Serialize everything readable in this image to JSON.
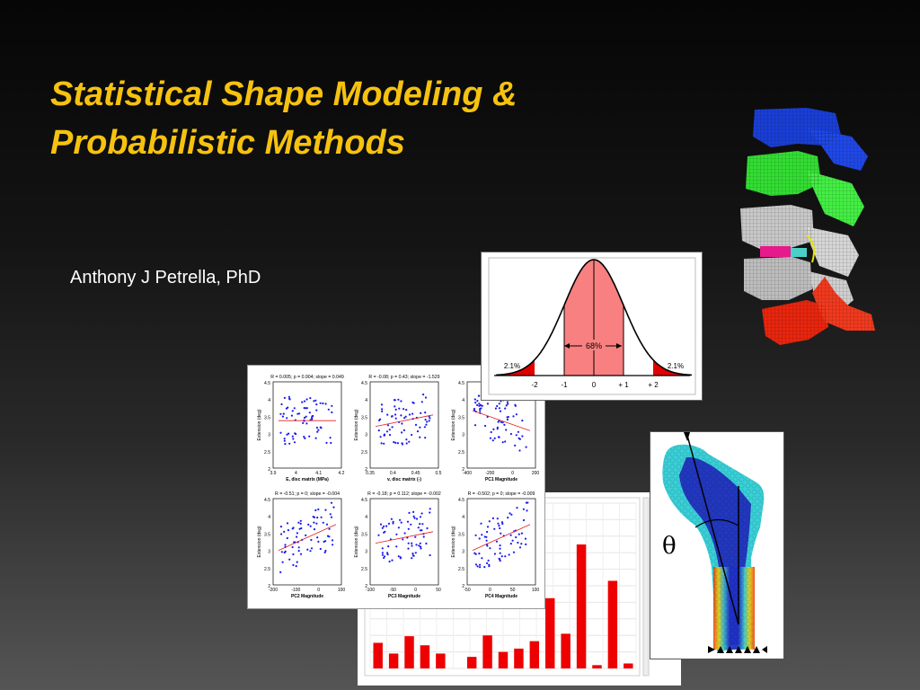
{
  "slide": {
    "title_line1": "Statistical Shape Modeling &",
    "title_line2": "Probabilistic Methods",
    "author": "Anthony J Petrella, PhD",
    "title_color": "#f6c20f"
  },
  "bell": {
    "center_label": "68%",
    "left_tail_label": "2.1%",
    "right_tail_label": "2.1%",
    "ticks": [
      "-2",
      "-1",
      "0",
      "+ 1",
      "+ 2"
    ]
  },
  "scatter_panels": [
    {
      "stats": "R = 0.005; p = 0.904; slope = 0.049",
      "xlabel": "E, disc matrix (MPa)",
      "xticks": [
        "3.9",
        "4",
        "4.1",
        "4.2"
      ]
    },
    {
      "stats": "R = -0.08; p = 0.43; slope = -1.529",
      "xlabel": "v, disc matrix (-)",
      "xticks": [
        "0.35",
        "0.4",
        "0.45",
        "0.5"
      ]
    },
    {
      "stats": "R = 0.4",
      "xlabel": "PC1 Magnitude",
      "xticks": [
        "-400",
        "-200",
        "0",
        "200"
      ]
    },
    {
      "stats": "R = -0.51; p = 0; slope = -0.004",
      "xlabel": "PC2 Magnitude",
      "xticks": [
        "-200",
        "-100",
        "0",
        "100"
      ]
    },
    {
      "stats": "R = -0.18; p = 0.112; slope = -0.002",
      "xlabel": "PC3 Magnitude",
      "xticks": [
        "-100",
        "-50",
        "0",
        "50"
      ]
    },
    {
      "stats": "R = -0.502; p = 0; slope = -0.009",
      "xlabel": "PC4 Magnitude",
      "xticks": [
        "-50",
        "0",
        "50",
        "100"
      ]
    }
  ],
  "scatter_ylabel": "Extension (deg)",
  "scatter_yticks": [
    "4.5",
    "4",
    "3.5",
    "3",
    "2.5",
    "2"
  ],
  "bar_values": [
    0.155,
    0.09,
    0.195,
    0.14,
    0.09,
    0.0,
    0.07,
    0.2,
    0.1,
    0.12,
    0.165,
    0.425,
    0.21,
    0.75,
    0.02,
    0.53,
    0.03
  ],
  "theta_label": "θ"
}
